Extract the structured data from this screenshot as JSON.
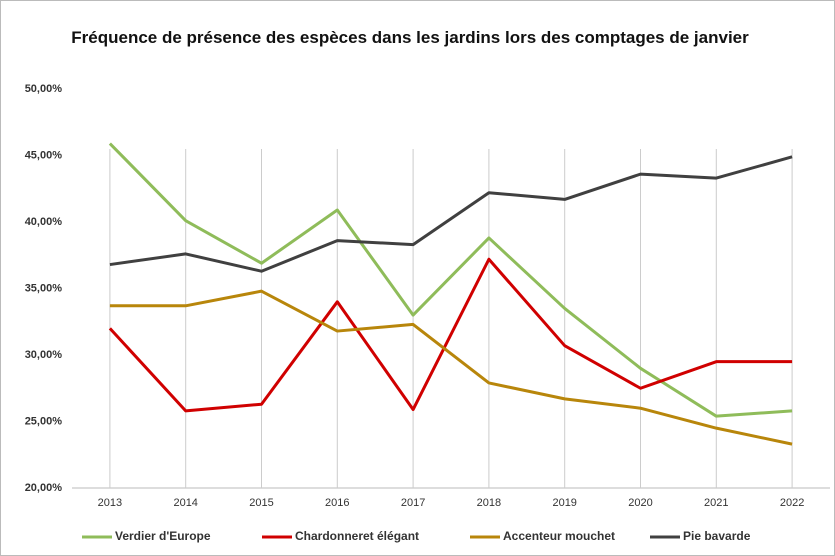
{
  "chart_data": {
    "type": "line",
    "title": "Fréquence de présence des espèces dans les jardins lors des comptages de janvier",
    "categories": [
      "2013",
      "2014",
      "2015",
      "2016",
      "2017",
      "2018",
      "2019",
      "2020",
      "2021",
      "2022"
    ],
    "series": [
      {
        "name": "Verdier d'Europe",
        "color": "#8fbc5a",
        "values": [
          45.9,
          40.1,
          36.9,
          40.9,
          33.0,
          38.8,
          33.5,
          29.0,
          25.4,
          25.8
        ]
      },
      {
        "name": "Chardonneret élégant",
        "color": "#d00000",
        "values": [
          32.0,
          25.8,
          26.3,
          34.0,
          25.9,
          37.2,
          30.7,
          27.5,
          29.5,
          29.5
        ]
      },
      {
        "name": "Accenteur mouchet",
        "color": "#b8860b",
        "values": [
          33.7,
          33.7,
          34.8,
          31.8,
          32.3,
          27.9,
          26.7,
          26.0,
          24.5,
          23.3
        ]
      },
      {
        "name": "Pie bavarde",
        "color": "#404040",
        "values": [
          36.8,
          37.6,
          36.3,
          38.6,
          38.3,
          42.2,
          41.7,
          43.6,
          43.3,
          44.9
        ]
      }
    ],
    "ylim": [
      20,
      50
    ],
    "yticks": [
      {
        "value": 20,
        "label": "20,00%"
      },
      {
        "value": 25,
        "label": "25,00%"
      },
      {
        "value": 30,
        "label": "30,00%"
      },
      {
        "value": 35,
        "label": "35,00%"
      },
      {
        "value": 40,
        "label": "40,00%"
      },
      {
        "value": 45,
        "label": "45,00%"
      },
      {
        "value": 50,
        "label": "50,00%"
      }
    ],
    "grid": true,
    "legend": "bottom"
  }
}
